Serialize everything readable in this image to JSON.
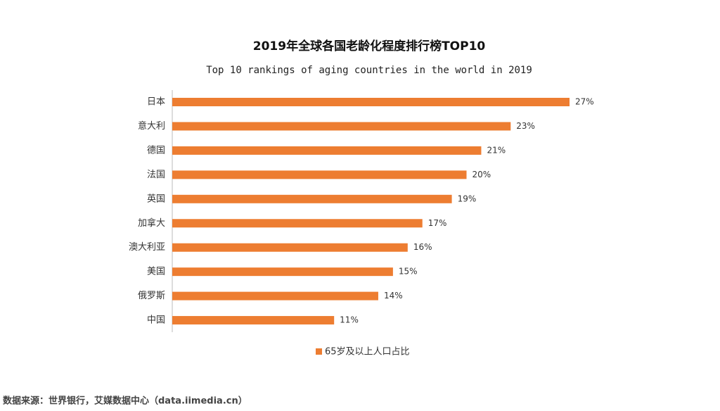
{
  "chart_data": {
    "type": "bar",
    "orientation": "horizontal",
    "title": "2019年全球各国老龄化程度排行榜TOP10",
    "subtitle": "Top 10 rankings of aging countries in the world in 2019",
    "categories": [
      "日本",
      "意大利",
      "德国",
      "法国",
      "英国",
      "加拿大",
      "澳大利亚",
      "美国",
      "俄罗斯",
      "中国"
    ],
    "series": [
      {
        "name": "65岁及以上人口占比",
        "color": "#ed7d31",
        "values": [
          27,
          23,
          21,
          20,
          19,
          17,
          16,
          15,
          14,
          11
        ],
        "value_labels": [
          "27%",
          "23%",
          "21%",
          "20%",
          "19%",
          "17%",
          "16%",
          "15%",
          "14%",
          "11%"
        ]
      }
    ],
    "legend": "bottom"
  },
  "source": "数据来源：世界银行，艾媒数据中心（data.iimedia.cn）"
}
